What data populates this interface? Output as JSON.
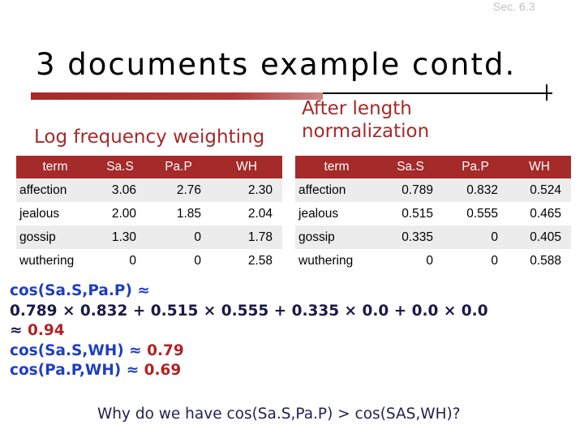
{
  "section_ref": "Sec. 6.3",
  "title": "3 documents example contd.",
  "left_label": "Log frequency weighting",
  "right_label": "After length normalization",
  "left_table": {
    "headers": [
      "term",
      "Sa.S",
      "Pa.P",
      "WH"
    ],
    "rows": [
      [
        "affection",
        "3.06",
        "2.76",
        "2.30"
      ],
      [
        "jealous",
        "2.00",
        "1.85",
        "2.04"
      ],
      [
        "gossip",
        "1.30",
        "0",
        "1.78"
      ],
      [
        "wuthering",
        "0",
        "0",
        "2.58"
      ]
    ]
  },
  "right_table": {
    "headers": [
      "term",
      "Sa.S",
      "Pa.P",
      "WH"
    ],
    "rows": [
      [
        "affection",
        "0.789",
        "0.832",
        "0.524"
      ],
      [
        "jealous",
        "0.515",
        "0.555",
        "0.465"
      ],
      [
        "gossip",
        "0.335",
        "0",
        "0.405"
      ],
      [
        "wuthering",
        "0",
        "0",
        "0.588"
      ]
    ]
  },
  "math": {
    "line1": "cos(Sa.S,Pa.P) ≈",
    "line2": "0.789 × 0.832 + 0.515 × 0.555 + 0.335 × 0.0 + 0.0 × 0.0",
    "line3_approx": "≈",
    "line3_value": "0.94",
    "line4_label": "cos(Sa.S,WH) ≈",
    "line4_value": "0.79",
    "line5_label": "cos(Pa.P,WH) ≈",
    "line5_value": "0.69"
  },
  "question": "Why do we have cos(Sa.S,Pa.P) > cos(SAS,WH)?",
  "colors": {
    "accent": "#a52a2a",
    "blue_text": "#1f3fbf",
    "red_text": "#b22222"
  }
}
